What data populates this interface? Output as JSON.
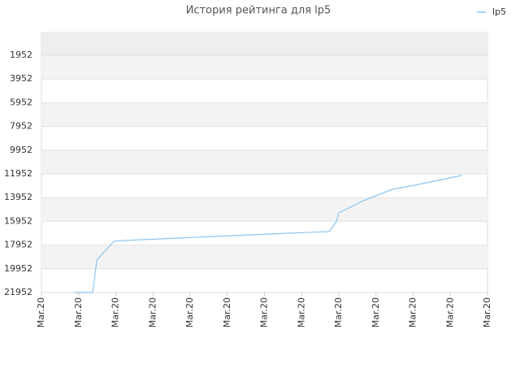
{
  "chart_data": {
    "type": "line",
    "title": "История рейтинга для lp5",
    "series": [
      {
        "name": "lp5",
        "color": "#8ec5f0",
        "x": [
          0.87,
          1.38,
          1.49,
          1.95,
          2.21,
          2.71,
          3.69,
          4.68,
          5.66,
          6.64,
          7.74,
          7.93,
          8.0,
          8.66,
          9.44,
          10.03,
          11.3
        ],
        "values": [
          21952,
          21952,
          19212,
          17637,
          17569,
          17500,
          17363,
          17226,
          17089,
          16952,
          16815,
          15993,
          15240,
          14213,
          13254,
          12911,
          12089
        ]
      }
    ],
    "xlim": [
      0,
      12
    ],
    "xticks": [
      {
        "value": 0,
        "label": "Mar.20"
      },
      {
        "value": 1,
        "label": "Mar.20"
      },
      {
        "value": 2,
        "label": "Mar.20"
      },
      {
        "value": 3,
        "label": "Mar.20"
      },
      {
        "value": 4,
        "label": "Mar.20"
      },
      {
        "value": 5,
        "label": "Mar.20"
      },
      {
        "value": 6,
        "label": "Mar.20"
      },
      {
        "value": 7,
        "label": "Mar.20"
      },
      {
        "value": 8,
        "label": "Mar.20"
      },
      {
        "value": 9,
        "label": "Mar.20"
      },
      {
        "value": 10,
        "label": "Mar.20"
      },
      {
        "value": 11,
        "label": "Mar.20"
      },
      {
        "value": 12,
        "label": "Mar.20"
      }
    ],
    "ylim": [
      21952,
      34
    ],
    "yticks": [
      1952,
      3952,
      5952,
      7952,
      9952,
      11952,
      13952,
      15952,
      17952,
      19952,
      21952
    ],
    "grid": true,
    "legend": "top-right"
  }
}
